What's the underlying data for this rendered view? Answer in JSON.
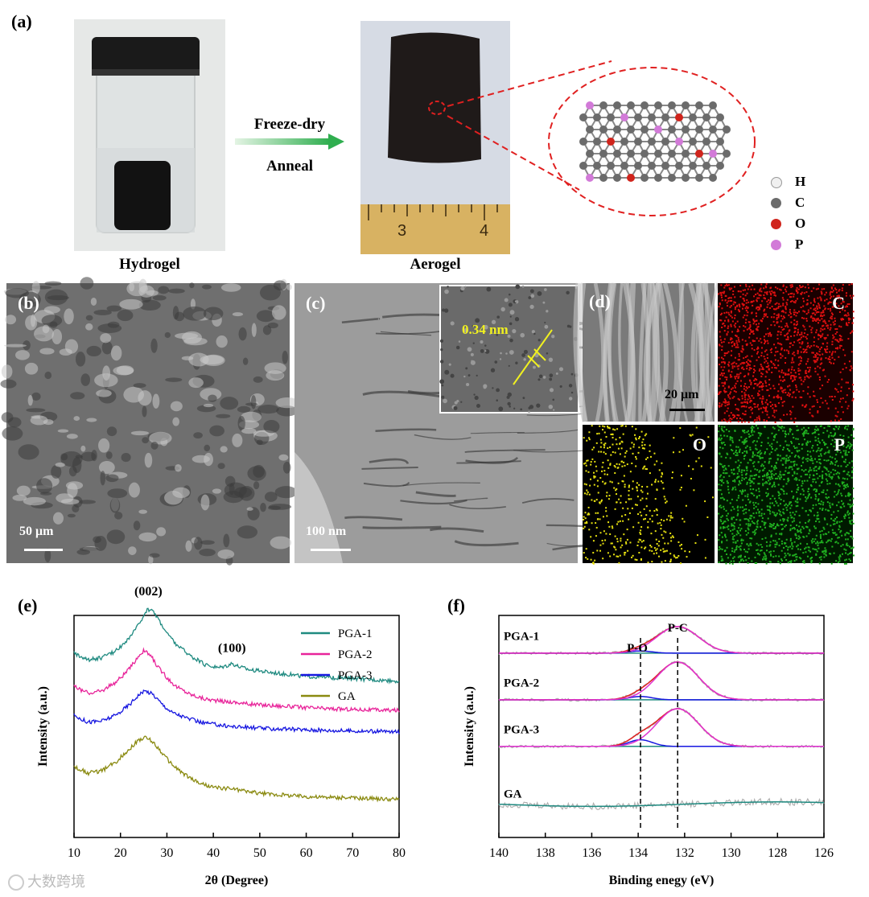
{
  "panel_a": {
    "label": "(a)",
    "hydrogel_caption": "Hydrogel",
    "aerogel_caption": "Aerogel",
    "arrow_top": "Freeze-dry",
    "arrow_bottom": "Anneal",
    "ruler_marks": [
      "3",
      "4"
    ],
    "atom_legend": [
      {
        "symbol": "H",
        "color": "#f0f0f0"
      },
      {
        "symbol": "C",
        "color": "#6b6b6b"
      },
      {
        "symbol": "O",
        "color": "#d0241c"
      },
      {
        "symbol": "P",
        "color": "#d27ad8"
      }
    ]
  },
  "panel_b": {
    "label": "(b)",
    "scale": "50 μm"
  },
  "panel_c": {
    "label": "(c)",
    "scale": "100 nm",
    "inset_label": "0.34 nm"
  },
  "panel_d": {
    "label": "(d)",
    "scale": "20 μm",
    "maps": [
      {
        "element": "C",
        "color": "#e01010"
      },
      {
        "element": "O",
        "color": "#e6e010"
      },
      {
        "element": "P",
        "color": "#20b020"
      }
    ]
  },
  "panel_e": {
    "label": "(e)"
  },
  "panel_f": {
    "label": "(f)"
  },
  "watermark": "大数跨境",
  "chart_data": [
    {
      "type": "line",
      "panel": "(e)",
      "xlabel": "2θ (Degree)",
      "ylabel": "Intensity (a.u.)",
      "xlim": [
        10,
        80
      ],
      "xticks": [
        10,
        20,
        30,
        40,
        50,
        60,
        70,
        80
      ],
      "annotations": [
        {
          "text": "(002)",
          "x": 26
        },
        {
          "text": "(100)",
          "x": 44
        }
      ],
      "legend": "top-right",
      "series": [
        {
          "name": "PGA-1",
          "color": "#1f8a80",
          "x": [
            10,
            13,
            16,
            19,
            22,
            24,
            25.5,
            26.5,
            28,
            30,
            32,
            35,
            38,
            41,
            43,
            44,
            45.5,
            48,
            52,
            56,
            60,
            65,
            70,
            75,
            80
          ],
          "y": [
            0.83,
            0.8,
            0.81,
            0.84,
            0.9,
            0.96,
            1.02,
            1.03,
            0.99,
            0.92,
            0.87,
            0.82,
            0.78,
            0.765,
            0.775,
            0.785,
            0.77,
            0.755,
            0.745,
            0.735,
            0.725,
            0.72,
            0.715,
            0.71,
            0.705
          ]
        },
        {
          "name": "PGA-2",
          "color": "#e8249a",
          "x": [
            10,
            13,
            16,
            19,
            22,
            24,
            25,
            26.5,
            28,
            30,
            32,
            35,
            38,
            41,
            44,
            48,
            52,
            56,
            60,
            65,
            70,
            75,
            80
          ],
          "y": [
            0.68,
            0.65,
            0.66,
            0.7,
            0.76,
            0.82,
            0.84,
            0.82,
            0.77,
            0.72,
            0.68,
            0.645,
            0.625,
            0.615,
            0.61,
            0.6,
            0.595,
            0.59,
            0.585,
            0.58,
            0.577,
            0.574,
            0.572
          ]
        },
        {
          "name": "PGA-3",
          "color": "#1717e0",
          "x": [
            10,
            13,
            16,
            19,
            22,
            24,
            25.5,
            27,
            29,
            31,
            34,
            37,
            40,
            44,
            48,
            52,
            56,
            60,
            65,
            70,
            75,
            80
          ],
          "y": [
            0.55,
            0.52,
            0.525,
            0.55,
            0.6,
            0.645,
            0.66,
            0.645,
            0.6,
            0.565,
            0.54,
            0.52,
            0.51,
            0.5,
            0.495,
            0.49,
            0.488,
            0.485,
            0.482,
            0.48,
            0.478,
            0.475
          ]
        },
        {
          "name": "GA",
          "color": "#8a8a10",
          "x": [
            10,
            13,
            16,
            19,
            22,
            24,
            25.5,
            27,
            29,
            31,
            34,
            37,
            40,
            44,
            48,
            52,
            56,
            60,
            65,
            70,
            75,
            80
          ],
          "y": [
            0.32,
            0.29,
            0.3,
            0.34,
            0.4,
            0.44,
            0.45,
            0.43,
            0.38,
            0.33,
            0.28,
            0.245,
            0.225,
            0.22,
            0.205,
            0.195,
            0.19,
            0.185,
            0.18,
            0.178,
            0.175,
            0.172
          ]
        }
      ]
    },
    {
      "type": "line",
      "panel": "(f)",
      "xlabel": "Binding enegy (eV)",
      "ylabel": "Intensity (a.u.)",
      "xlim": [
        140,
        126
      ],
      "xticks": [
        140,
        138,
        136,
        134,
        132,
        130,
        128,
        126
      ],
      "reversed_x": true,
      "reference_lines": [
        {
          "label": "P-O",
          "x": 133.9
        },
        {
          "label": "P-C",
          "x": 132.3
        }
      ],
      "groups": [
        {
          "name": "PGA-1",
          "baseline": 0.83,
          "fit_peak": 0.12,
          "po_peak": 0.01
        },
        {
          "name": "PGA-2",
          "baseline": 0.62,
          "fit_peak": 0.17,
          "po_peak": 0.015
        },
        {
          "name": "PGA-3",
          "baseline": 0.41,
          "fit_peak": 0.17,
          "po_peak": 0.03
        },
        {
          "name": "GA",
          "baseline": 0.15,
          "fit_peak": 0.0,
          "po_peak": 0.0
        }
      ],
      "component_colors": {
        "raw": "#b0b0b0",
        "envelope": "#e02020",
        "p_c": "#e030d0",
        "p_o": "#1717e0",
        "background": "#1f8a80"
      }
    }
  ]
}
